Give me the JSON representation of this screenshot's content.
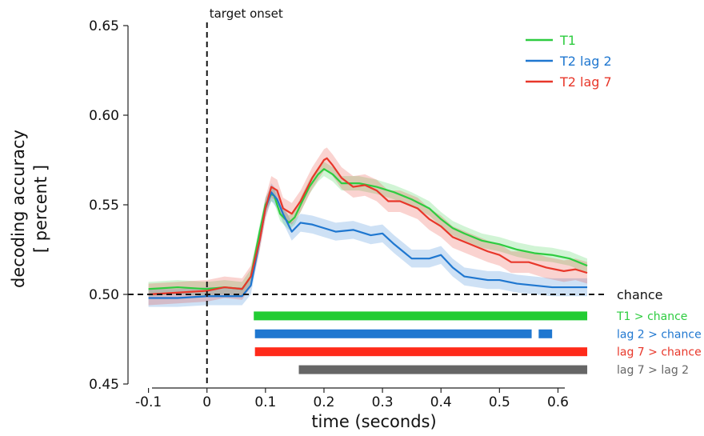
{
  "chart_data": {
    "type": "line",
    "xlabel": "time (seconds)",
    "ylabel_lines": [
      "decoding accuracy",
      "[ percent ]"
    ],
    "xlim": [
      -0.135,
      0.665
    ],
    "ylim": [
      0.45,
      0.65
    ],
    "xticks": [
      -0.1,
      0,
      0.1,
      0.2,
      0.3,
      0.4,
      0.5,
      0.6
    ],
    "xtick_labels": [
      "-0.1",
      "0",
      "0.1",
      "0.2",
      "0.3",
      "0.4",
      "0.5",
      "0.6"
    ],
    "yticks": [
      0.45,
      0.5,
      0.55,
      0.6,
      0.65
    ],
    "ytick_labels": [
      "0.45",
      "0.50",
      "0.55",
      "0.60",
      "0.65"
    ],
    "legend_position": "top-right",
    "chance": {
      "value": 0.5,
      "label": "chance"
    },
    "onset": {
      "x": 0,
      "label": "target onset"
    },
    "series": [
      {
        "name": "T1",
        "color": "#2ecc40",
        "x": [
          -0.1,
          -0.05,
          0,
          0.03,
          0.06,
          0.075,
          0.09,
          0.1,
          0.11,
          0.115,
          0.125,
          0.14,
          0.15,
          0.16,
          0.175,
          0.19,
          0.2,
          0.215,
          0.23,
          0.26,
          0.29,
          0.32,
          0.35,
          0.38,
          0.4,
          0.42,
          0.44,
          0.47,
          0.5,
          0.53,
          0.56,
          0.59,
          0.62,
          0.65
        ],
        "y": [
          0.503,
          0.504,
          0.503,
          0.504,
          0.503,
          0.51,
          0.535,
          0.55,
          0.556,
          0.555,
          0.545,
          0.54,
          0.543,
          0.55,
          0.56,
          0.567,
          0.57,
          0.567,
          0.562,
          0.562,
          0.56,
          0.557,
          0.553,
          0.548,
          0.542,
          0.537,
          0.534,
          0.53,
          0.528,
          0.525,
          0.523,
          0.522,
          0.52,
          0.516
        ],
        "ci": 0.004
      },
      {
        "name": "T2 lag 2",
        "color": "#1f77d0",
        "x": [
          -0.1,
          -0.05,
          0,
          0.03,
          0.06,
          0.075,
          0.09,
          0.1,
          0.11,
          0.12,
          0.13,
          0.145,
          0.16,
          0.18,
          0.2,
          0.22,
          0.25,
          0.28,
          0.3,
          0.32,
          0.35,
          0.38,
          0.4,
          0.42,
          0.44,
          0.46,
          0.48,
          0.5,
          0.53,
          0.56,
          0.59,
          0.62,
          0.65
        ],
        "y": [
          0.498,
          0.498,
          0.499,
          0.499,
          0.499,
          0.505,
          0.53,
          0.548,
          0.557,
          0.553,
          0.545,
          0.535,
          0.54,
          0.539,
          0.537,
          0.535,
          0.536,
          0.533,
          0.534,
          0.528,
          0.52,
          0.52,
          0.522,
          0.515,
          0.51,
          0.509,
          0.508,
          0.508,
          0.506,
          0.505,
          0.504,
          0.504,
          0.504
        ],
        "ci": 0.005
      },
      {
        "name": "T2 lag 7",
        "color": "#e8372a",
        "x": [
          -0.1,
          -0.05,
          0,
          0.03,
          0.06,
          0.075,
          0.09,
          0.1,
          0.11,
          0.12,
          0.13,
          0.145,
          0.16,
          0.18,
          0.2,
          0.205,
          0.215,
          0.23,
          0.25,
          0.27,
          0.29,
          0.31,
          0.33,
          0.36,
          0.38,
          0.4,
          0.42,
          0.45,
          0.48,
          0.5,
          0.52,
          0.55,
          0.58,
          0.61,
          0.63,
          0.65
        ],
        "y": [
          0.5,
          0.501,
          0.502,
          0.504,
          0.503,
          0.51,
          0.53,
          0.548,
          0.56,
          0.558,
          0.548,
          0.545,
          0.552,
          0.565,
          0.575,
          0.576,
          0.572,
          0.565,
          0.56,
          0.561,
          0.558,
          0.552,
          0.552,
          0.548,
          0.542,
          0.538,
          0.532,
          0.528,
          0.524,
          0.522,
          0.518,
          0.518,
          0.515,
          0.513,
          0.514,
          0.512
        ],
        "ci": 0.006
      }
    ],
    "significance_bars": [
      {
        "label": "T1 > chance",
        "color": "#22cc33",
        "label_color": "#2ecc40",
        "y": 0.488,
        "segments": [
          [
            0.08,
            0.65
          ]
        ]
      },
      {
        "label": "lag 2 > chance",
        "color": "#1f77d0",
        "label_color": "#1f77d0",
        "y": 0.478,
        "segments": [
          [
            0.082,
            0.555
          ],
          [
            0.567,
            0.59
          ]
        ]
      },
      {
        "label": "lag 7 > chance",
        "color": "#ff2a1a",
        "label_color": "#e8372a",
        "y": 0.468,
        "segments": [
          [
            0.082,
            0.65
          ]
        ]
      },
      {
        "label": "lag 7 > lag 2",
        "color": "#666666",
        "label_color": "#666666",
        "y": 0.458,
        "segments": [
          [
            0.157,
            0.65
          ]
        ]
      }
    ]
  }
}
